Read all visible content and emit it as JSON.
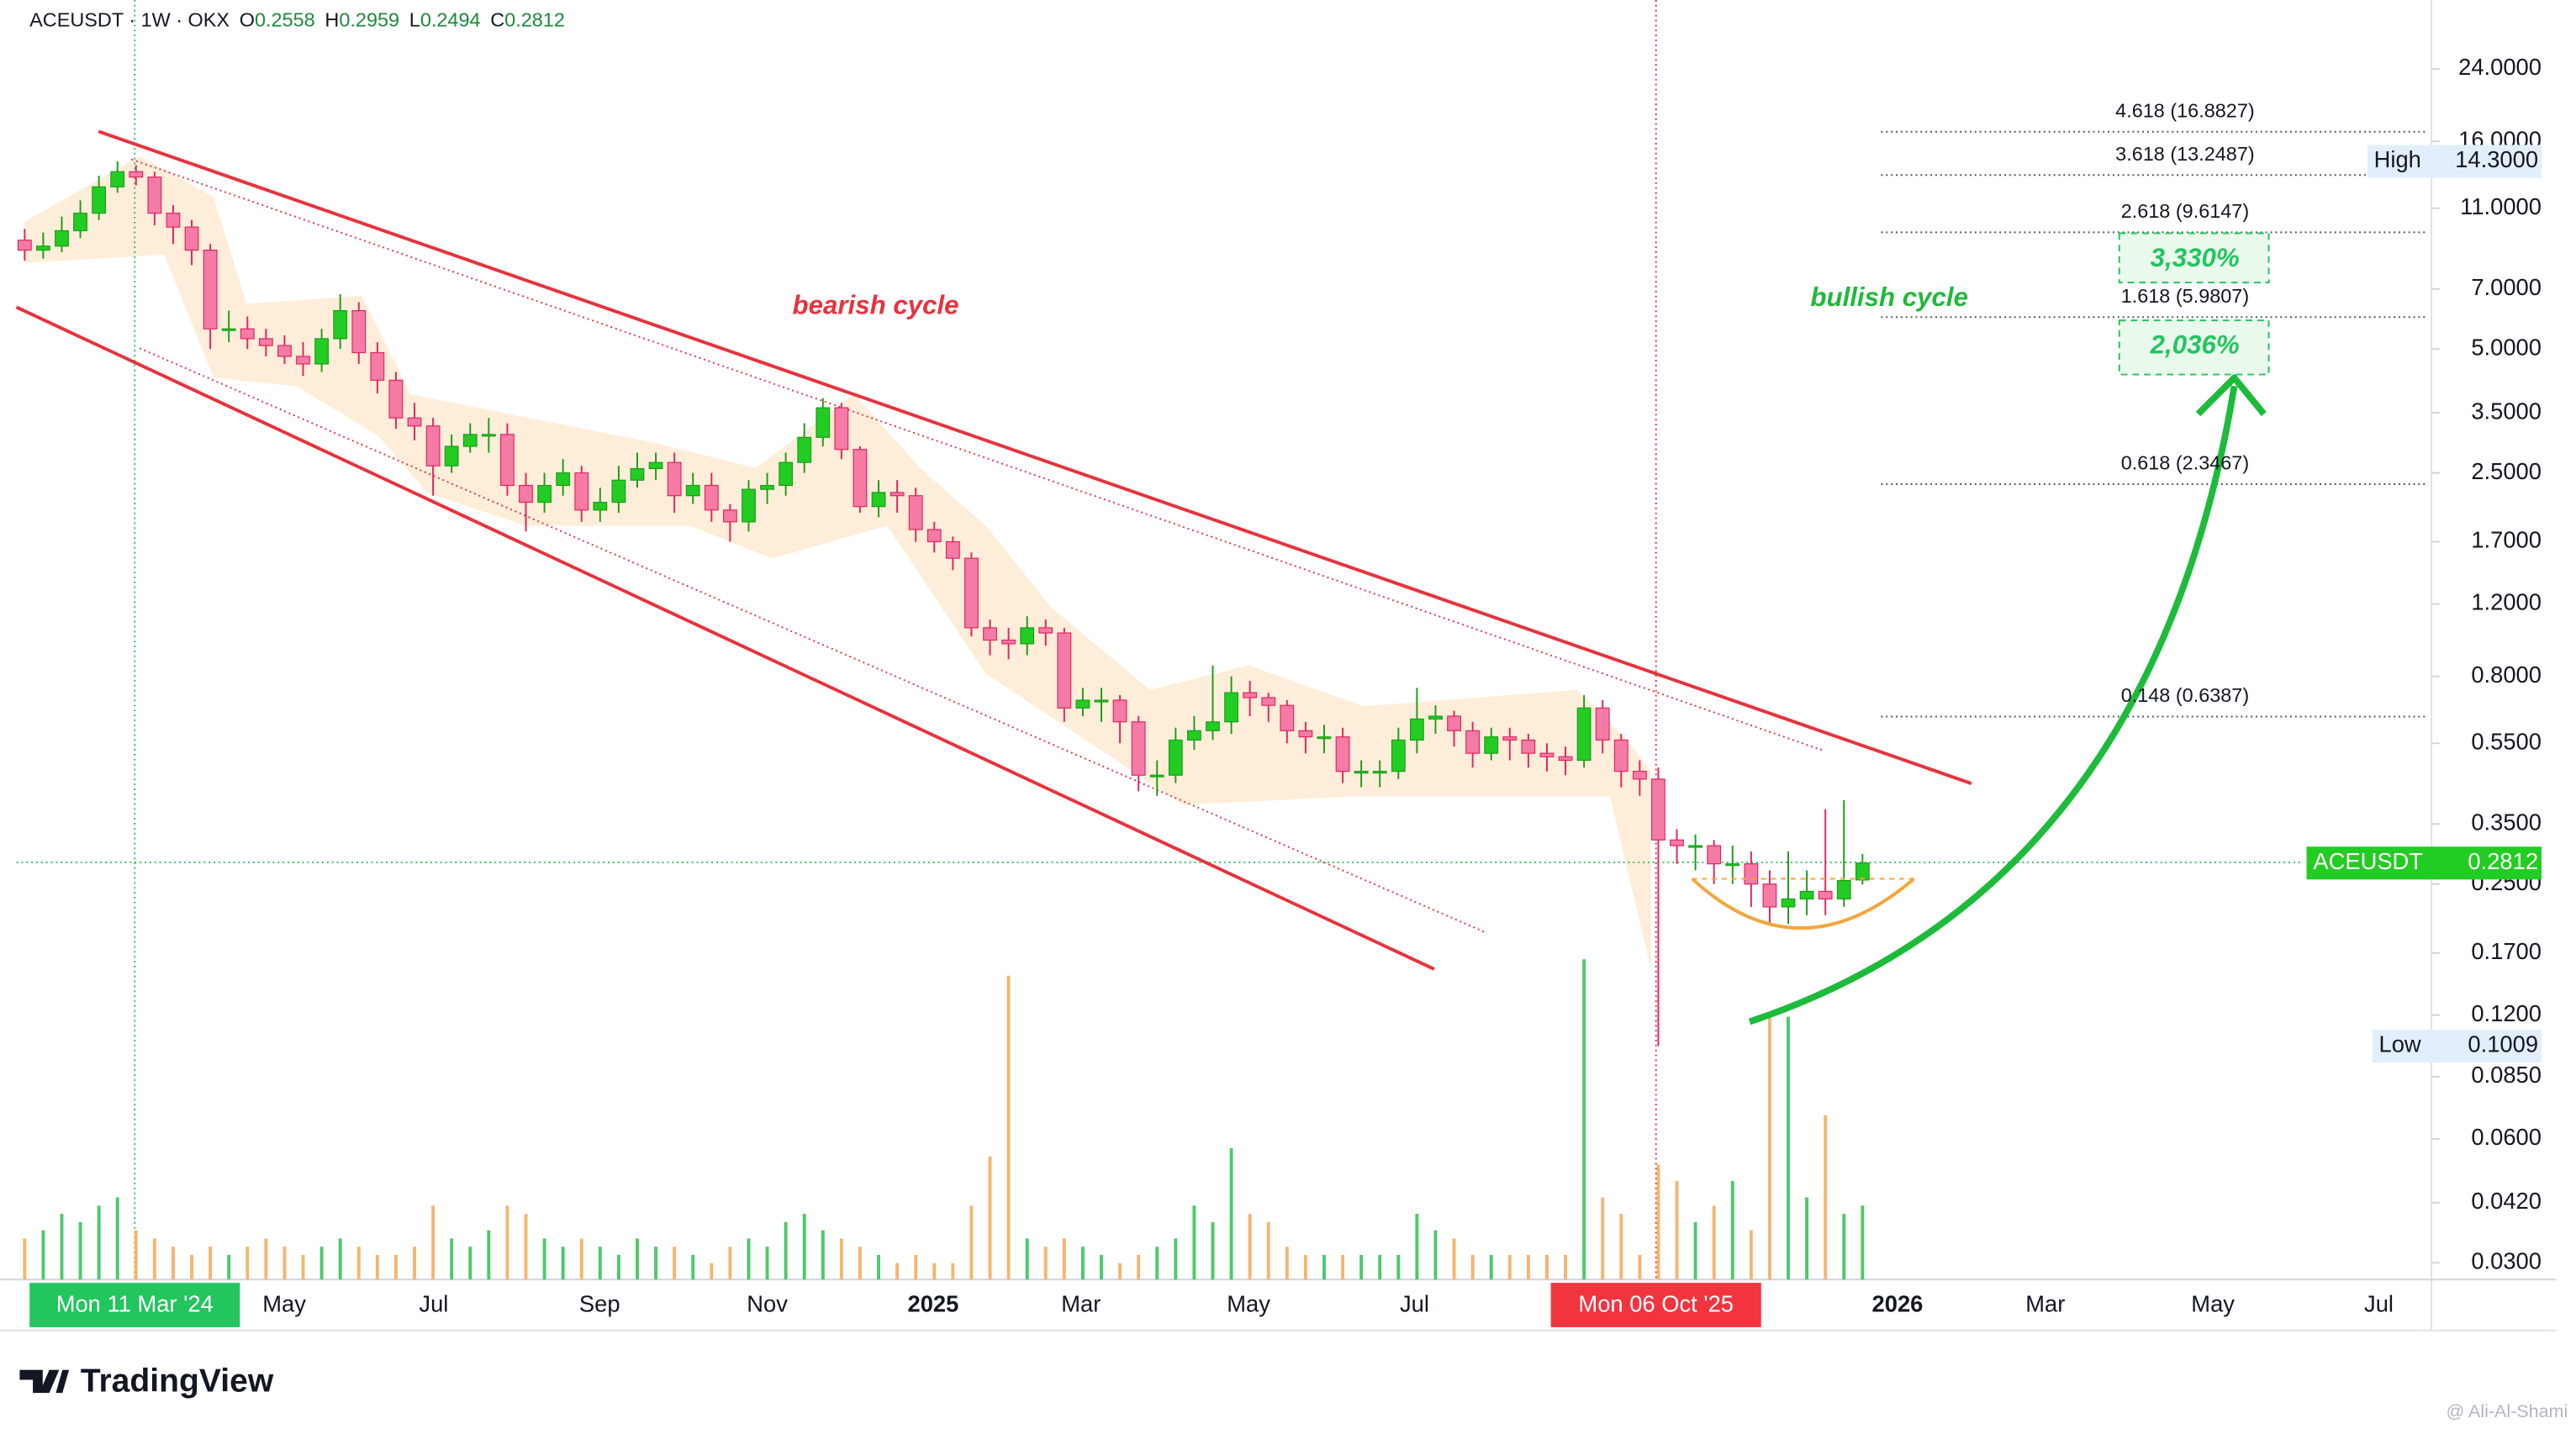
{
  "chart_data": {
    "type": "candlestick",
    "title": "ACEUSDT · 1W · OKX",
    "ohlc_legend": [
      {
        "key": "O",
        "value": 0.2558
      },
      {
        "key": "H",
        "value": 0.2959
      },
      {
        "key": "L",
        "value": 0.2494
      },
      {
        "key": "C",
        "value": 0.2812
      }
    ],
    "log_scale": true,
    "ylim": [
      0.0273,
      35.3
    ],
    "yticks": [
      {
        "value": 24,
        "label": "24.0000"
      },
      {
        "value": 16,
        "label": "16.0000"
      },
      {
        "value": 11,
        "label": "11.0000"
      },
      {
        "value": 7,
        "label": "7.0000"
      },
      {
        "value": 5,
        "label": "5.0000"
      },
      {
        "value": 3.5,
        "label": "3.5000"
      },
      {
        "value": 2.5,
        "label": "2.5000"
      },
      {
        "value": 1.7,
        "label": "1.7000"
      },
      {
        "value": 1.2,
        "label": "1.2000"
      },
      {
        "value": 0.8,
        "label": "0.8000"
      },
      {
        "value": 0.55,
        "label": "0.5500"
      },
      {
        "value": 0.35,
        "label": "0.3500"
      },
      {
        "value": 0.25,
        "label": "0.2500"
      },
      {
        "value": 0.17,
        "label": "0.1700"
      },
      {
        "value": 0.12,
        "label": "0.1200"
      },
      {
        "value": 0.085,
        "label": "0.0850"
      },
      {
        "value": 0.06,
        "label": "0.0600"
      },
      {
        "value": 0.042,
        "label": "0.0420"
      },
      {
        "value": 0.03,
        "label": "0.0300"
      }
    ],
    "up_color": "#22cc22",
    "down_color": "#f47ba6",
    "wick_down_color": "#e3245e",
    "volume_up_color": "#4cc96a",
    "volume_down_color": "#f5b56e",
    "open": [
      9.2,
      8.7,
      8.9,
      9.7,
      10.7,
      12.4,
      13.5,
      13.1,
      10.7,
      9.9,
      8.7,
      5.6,
      5.6,
      5.3,
      5.1,
      4.8,
      4.6,
      5.3,
      6.2,
      4.9,
      4.2,
      3.4,
      3.25,
      2.6,
      2.9,
      3.1,
      3.1,
      2.33,
      2.12,
      2.33,
      2.5,
      2.03,
      2.12,
      2.4,
      2.56,
      2.65,
      2.2,
      2.33,
      2.03,
      1.9,
      2.28,
      2.33,
      2.65,
      3.05,
      3.6,
      2.85,
      2.07,
      2.24,
      2.2,
      1.82,
      1.7,
      1.55,
      1.05,
      0.98,
      0.96,
      1.05,
      1.02,
      0.67,
      0.7,
      0.7,
      0.62,
      0.46,
      0.46,
      0.56,
      0.59,
      0.62,
      0.73,
      0.71,
      0.68,
      0.59,
      0.57,
      0.57,
      0.47,
      0.47,
      0.47,
      0.56,
      0.63,
      0.64,
      0.59,
      0.52,
      0.57,
      0.56,
      0.52,
      0.51,
      0.5,
      0.67,
      0.56,
      0.47,
      0.45,
      0.32,
      0.31,
      0.31,
      0.28,
      0.28,
      0.25,
      0.22,
      0.23,
      0.24,
      0.23,
      0.2558
    ],
    "high": [
      9.8,
      9.6,
      10.5,
      11.5,
      13.2,
      14.3,
      14.0,
      13.5,
      11.2,
      10.3,
      9.0,
      6.2,
      6.0,
      5.6,
      5.4,
      5.2,
      5.6,
      6.8,
      6.5,
      5.2,
      4.4,
      3.7,
      3.4,
      3.1,
      3.3,
      3.4,
      3.3,
      2.5,
      2.5,
      2.7,
      2.6,
      2.3,
      2.6,
      2.8,
      2.8,
      2.8,
      2.5,
      2.5,
      2.1,
      2.4,
      2.5,
      2.8,
      3.3,
      3.8,
      3.7,
      2.9,
      2.4,
      2.4,
      2.3,
      1.9,
      1.75,
      1.6,
      1.1,
      1.05,
      1.12,
      1.1,
      1.05,
      0.75,
      0.75,
      0.72,
      0.64,
      0.5,
      0.6,
      0.64,
      0.85,
      0.8,
      0.78,
      0.73,
      0.7,
      0.62,
      0.61,
      0.6,
      0.5,
      0.5,
      0.6,
      0.75,
      0.68,
      0.66,
      0.62,
      0.6,
      0.6,
      0.58,
      0.55,
      0.54,
      0.72,
      0.7,
      0.58,
      0.5,
      0.48,
      0.34,
      0.33,
      0.32,
      0.31,
      0.3,
      0.27,
      0.3,
      0.27,
      0.38,
      0.4,
      0.2959
    ],
    "low": [
      8.2,
      8.3,
      8.6,
      9.3,
      10.3,
      12.0,
      12.5,
      10.0,
      9.0,
      8.0,
      5.0,
      5.2,
      5.0,
      4.8,
      4.6,
      4.3,
      4.4,
      5.0,
      4.6,
      3.9,
      3.2,
      3.0,
      2.2,
      2.5,
      2.8,
      2.8,
      2.2,
      1.8,
      2.0,
      2.2,
      1.9,
      1.9,
      2.0,
      2.3,
      2.4,
      2.0,
      2.1,
      1.9,
      1.7,
      1.8,
      2.1,
      2.2,
      2.5,
      2.9,
      2.7,
      2.0,
      1.95,
      2.0,
      1.7,
      1.6,
      1.45,
      1.0,
      0.9,
      0.88,
      0.9,
      0.95,
      0.62,
      0.64,
      0.62,
      0.55,
      0.42,
      0.41,
      0.44,
      0.53,
      0.56,
      0.58,
      0.64,
      0.62,
      0.55,
      0.52,
      0.52,
      0.44,
      0.43,
      0.43,
      0.45,
      0.52,
      0.58,
      0.54,
      0.48,
      0.5,
      0.5,
      0.48,
      0.47,
      0.46,
      0.48,
      0.52,
      0.43,
      0.41,
      0.1009,
      0.28,
      0.27,
      0.25,
      0.25,
      0.22,
      0.2,
      0.2,
      0.21,
      0.21,
      0.22,
      0.2494
    ],
    "close": [
      8.7,
      8.9,
      9.7,
      10.7,
      12.4,
      13.5,
      13.1,
      10.7,
      9.9,
      8.7,
      5.6,
      5.6,
      5.3,
      5.1,
      4.8,
      4.6,
      5.3,
      6.2,
      4.9,
      4.2,
      3.4,
      3.25,
      2.6,
      2.9,
      3.1,
      3.1,
      2.33,
      2.12,
      2.33,
      2.5,
      2.03,
      2.12,
      2.4,
      2.56,
      2.65,
      2.2,
      2.33,
      2.03,
      1.9,
      2.28,
      2.33,
      2.65,
      3.05,
      3.6,
      2.85,
      2.07,
      2.24,
      2.2,
      1.82,
      1.7,
      1.55,
      1.05,
      0.98,
      0.96,
      1.05,
      1.02,
      0.67,
      0.7,
      0.7,
      0.62,
      0.46,
      0.46,
      0.56,
      0.59,
      0.62,
      0.73,
      0.71,
      0.68,
      0.59,
      0.57,
      0.57,
      0.47,
      0.47,
      0.47,
      0.56,
      0.63,
      0.64,
      0.59,
      0.52,
      0.57,
      0.56,
      0.52,
      0.51,
      0.5,
      0.67,
      0.56,
      0.47,
      0.45,
      0.32,
      0.31,
      0.31,
      0.28,
      0.28,
      0.25,
      0.22,
      0.23,
      0.24,
      0.23,
      0.255,
      0.2812
    ],
    "volume": [
      25,
      30,
      40,
      35,
      45,
      50,
      30,
      25,
      20,
      15,
      20,
      15,
      20,
      25,
      20,
      15,
      20,
      25,
      20,
      15,
      15,
      20,
      45,
      25,
      20,
      30,
      45,
      40,
      25,
      20,
      25,
      20,
      15,
      25,
      20,
      20,
      15,
      10,
      20,
      25,
      20,
      35,
      40,
      30,
      25,
      20,
      15,
      10,
      15,
      10,
      10,
      45,
      75,
      185,
      25,
      20,
      25,
      20,
      15,
      10,
      15,
      20,
      25,
      45,
      35,
      80,
      40,
      35,
      20,
      15,
      15,
      15,
      15,
      15,
      15,
      40,
      30,
      25,
      15,
      15,
      15,
      15,
      15,
      15,
      195,
      50,
      40,
      15,
      70,
      60,
      35,
      45,
      60,
      30,
      160,
      160,
      50,
      100,
      40,
      45
    ],
    "x_labels": [
      "Mon 11 Mar '24",
      "May",
      "Jul",
      "Sep",
      "Nov",
      "2025",
      "Mar",
      "May",
      "Jul",
      "Mon 06 Oct '25",
      "2026",
      "Mar",
      "May",
      "Jul"
    ],
    "fib_levels": [
      {
        "label": "4.618 (16.8827)",
        "value": 16.8827
      },
      {
        "label": "3.618 (13.2487)",
        "value": 13.2487
      },
      {
        "label": "2.618 (9.6147)",
        "value": 9.6147
      },
      {
        "label": "1.618 (5.9807)",
        "value": 5.9807
      },
      {
        "label": "0.618 (2.3467)",
        "value": 2.3467
      },
      {
        "label": "0.148 (0.6387)",
        "value": 0.6387
      }
    ],
    "price_tags": [
      {
        "name": "High",
        "value": {
          "value": 14.3,
          "label": "14.3000"
        }
      },
      {
        "name": "ACEUSDT",
        "value": 0.2812
      },
      {
        "name": "Low",
        "value": 0.1009
      }
    ],
    "annotations": {
      "bearish": "bearish cycle",
      "bullish": "bullish cycle",
      "targets": [
        "3,330%",
        "2,036%"
      ]
    }
  },
  "footer": {
    "brand": "TradingView",
    "author": "@ Ali-Al-Shami"
  }
}
